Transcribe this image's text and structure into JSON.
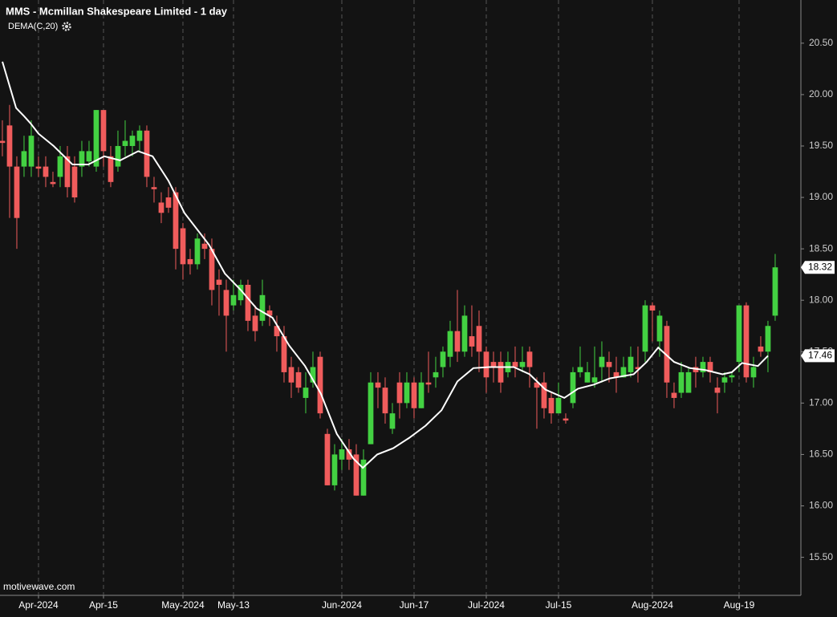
{
  "chart_data": {
    "type": "candlestick",
    "title": "MMS - Mcmillan Shakespeare Limited - 1 day",
    "watermark": "motivewave.com",
    "up_color": "#43d142",
    "down_color": "#f05c5c",
    "open": [
      19.55,
      19.7,
      19.3,
      19.3,
      19.3,
      19.3,
      19.3,
      19.15,
      19.2,
      19.4,
      19.3,
      19.3,
      19.35,
      19.3,
      19.85,
      19.4,
      19.3,
      19.5,
      19.5,
      19.55,
      19.65,
      19.1,
      18.95,
      19.0,
      19.05,
      18.7,
      18.4,
      18.35,
      18.55,
      18.5,
      18.2,
      18.1,
      17.95,
      18.0,
      18.15,
      17.85,
      17.8,
      17.9,
      17.75,
      17.65,
      17.35,
      17.3,
      17.05,
      17.2,
      17.45,
      16.7,
      16.2,
      16.45,
      16.55,
      16.5,
      16.1,
      16.6,
      17.2,
      17.15,
      16.75,
      17.2,
      17.0,
      17.2,
      16.95,
      17.2,
      17.25,
      17.35,
      17.45,
      17.7,
      17.5,
      17.65,
      17.75,
      17.5,
      17.4,
      17.4,
      17.3,
      17.4,
      17.35,
      17.5,
      17.2,
      17.2,
      17.05,
      16.9,
      16.85,
      17.0,
      17.3,
      17.2,
      17.2,
      17.35,
      17.4,
      17.3,
      17.25,
      17.3,
      17.35,
      17.5,
      17.95,
      17.6,
      17.75,
      17.1,
      17.1,
      17.1,
      17.35,
      17.3,
      17.4,
      17.15,
      17.2,
      17.25,
      17.4,
      17.95,
      17.25,
      17.55,
      17.5,
      17.85
    ],
    "high": [
      19.75,
      19.9,
      19.4,
      19.6,
      19.75,
      19.4,
      19.4,
      19.25,
      19.5,
      19.5,
      19.4,
      19.55,
      19.55,
      19.85,
      19.85,
      19.5,
      19.65,
      19.75,
      19.65,
      19.7,
      19.7,
      19.2,
      19.05,
      19.1,
      19.1,
      18.75,
      18.5,
      18.65,
      18.65,
      18.6,
      18.3,
      18.2,
      18.2,
      18.2,
      18.2,
      17.95,
      18.2,
      17.95,
      17.85,
      17.75,
      17.45,
      17.35,
      17.3,
      17.5,
      17.5,
      16.75,
      16.6,
      16.65,
      16.65,
      16.6,
      16.55,
      17.3,
      17.3,
      17.25,
      17.0,
      17.3,
      17.3,
      17.25,
      17.3,
      17.5,
      17.45,
      17.55,
      17.8,
      18.1,
      17.95,
      17.95,
      17.9,
      17.55,
      17.5,
      17.5,
      17.5,
      17.55,
      17.55,
      17.55,
      17.25,
      17.3,
      17.1,
      17.2,
      16.9,
      17.35,
      17.55,
      17.4,
      17.55,
      17.6,
      17.5,
      17.45,
      17.45,
      17.55,
      17.55,
      18.0,
      17.98,
      17.9,
      17.8,
      17.2,
      17.4,
      17.35,
      17.45,
      17.45,
      17.45,
      17.25,
      17.3,
      17.3,
      17.95,
      17.98,
      17.45,
      17.65,
      17.8,
      18.45
    ],
    "low": [
      19.4,
      18.8,
      18.5,
      19.2,
      19.2,
      19.2,
      19.1,
      19.1,
      19.1,
      19.0,
      18.95,
      19.2,
      19.3,
      19.25,
      19.3,
      19.1,
      19.25,
      19.4,
      19.4,
      19.45,
      19.1,
      18.95,
      18.75,
      18.85,
      18.3,
      18.2,
      18.25,
      18.3,
      18.4,
      17.95,
      17.85,
      17.5,
      17.9,
      17.95,
      17.7,
      17.6,
      17.75,
      17.75,
      17.5,
      17.2,
      17.05,
      17.1,
      16.9,
      17.15,
      16.85,
      16.2,
      16.15,
      16.35,
      16.35,
      16.1,
      16.1,
      16.6,
      16.95,
      16.8,
      16.7,
      16.85,
      16.95,
      16.85,
      16.95,
      17.1,
      17.15,
      17.25,
      17.35,
      17.4,
      17.45,
      17.45,
      17.3,
      17.1,
      17.2,
      17.1,
      17.25,
      17.25,
      17.3,
      17.15,
      16.75,
      16.85,
      16.8,
      16.9,
      16.8,
      16.95,
      17.25,
      17.2,
      17.15,
      17.2,
      17.2,
      17.1,
      17.25,
      17.25,
      17.2,
      17.4,
      17.6,
      17.45,
      17.05,
      16.95,
      17.05,
      17.15,
      17.15,
      17.25,
      17.2,
      16.9,
      17.1,
      17.2,
      17.3,
      17.2,
      17.15,
      17.45,
      17.3,
      17.8
    ],
    "close": [
      19.53,
      19.3,
      18.8,
      19.45,
      19.6,
      19.28,
      19.2,
      19.13,
      19.4,
      19.1,
      19.0,
      19.45,
      19.45,
      19.85,
      19.45,
      19.15,
      19.5,
      19.55,
      19.6,
      19.65,
      19.2,
      19.08,
      18.85,
      18.9,
      18.5,
      18.35,
      18.35,
      18.6,
      18.5,
      18.1,
      18.15,
      17.85,
      18.05,
      18.15,
      17.8,
      17.7,
      18.05,
      17.85,
      17.65,
      17.3,
      17.2,
      17.15,
      17.15,
      17.35,
      16.9,
      16.2,
      16.5,
      16.55,
      16.45,
      16.1,
      16.45,
      17.2,
      17.15,
      16.9,
      16.9,
      17.0,
      17.2,
      16.95,
      17.2,
      17.18,
      17.3,
      17.5,
      17.7,
      17.5,
      17.85,
      17.55,
      17.5,
      17.25,
      17.35,
      17.2,
      17.4,
      17.35,
      17.4,
      17.35,
      17.15,
      16.95,
      16.9,
      17.05,
      16.83,
      17.3,
      17.35,
      17.3,
      17.25,
      17.45,
      17.35,
      17.25,
      17.35,
      17.45,
      17.33,
      17.95,
      17.9,
      17.85,
      17.2,
      17.05,
      17.3,
      17.3,
      17.3,
      17.4,
      17.3,
      17.1,
      17.25,
      17.27,
      17.95,
      17.25,
      17.35,
      17.5,
      17.75,
      18.32
    ],
    "series": [
      {
        "name": "DEMA(C,20)",
        "color": "#ffffff",
        "x": [
          0,
          1.9,
          3,
          3.9,
          5,
          7.1,
          9.7,
          11.9,
          14.1,
          16.3,
          18.8,
          20.8,
          23,
          25.2,
          28.6,
          30.8,
          33,
          35.2,
          37.4,
          39.7,
          41.9,
          44.1,
          46.3,
          48.6,
          49.9,
          51.9,
          54.1,
          56.3,
          58.6,
          60.8,
          63,
          65.2,
          67.4,
          70.8,
          73,
          75.2,
          77.8,
          79.7,
          81.9,
          84.1,
          87.4,
          89.2,
          90.8,
          93,
          95.2,
          97.4,
          99.7,
          101,
          102.4,
          104.6,
          106
        ],
        "values": [
          20.32,
          19.87,
          19.79,
          19.72,
          19.62,
          19.5,
          19.32,
          19.32,
          19.4,
          19.36,
          19.45,
          19.4,
          19.16,
          18.85,
          18.54,
          18.26,
          18.1,
          17.92,
          17.83,
          17.56,
          17.36,
          17.09,
          16.7,
          16.46,
          16.37,
          16.5,
          16.56,
          16.66,
          16.78,
          16.93,
          17.21,
          17.34,
          17.35,
          17.35,
          17.28,
          17.13,
          17.05,
          17.14,
          17.18,
          17.24,
          17.28,
          17.4,
          17.54,
          17.4,
          17.34,
          17.32,
          17.28,
          17.3,
          17.39,
          17.36,
          17.46
        ]
      }
    ],
    "xlim": [
      -0.33,
      110.56
    ],
    "ylim": [
      15.13,
      20.92
    ],
    "xticks": [
      {
        "value": 5,
        "label": "Apr-2024"
      },
      {
        "value": 14,
        "label": "Apr-15"
      },
      {
        "value": 25,
        "label": "May-2024"
      },
      {
        "value": 32,
        "label": "May-13"
      },
      {
        "value": 47,
        "label": "Jun-2024"
      },
      {
        "value": 57,
        "label": "Jun-17"
      },
      {
        "value": 67,
        "label": "Jul-2024"
      },
      {
        "value": 77,
        "label": "Jul-15"
      },
      {
        "value": 90,
        "label": "Aug-2024"
      },
      {
        "value": 102,
        "label": "Aug-19"
      }
    ],
    "yticks": [
      {
        "value": 15.5,
        "label": "15.50"
      },
      {
        "value": 16,
        "label": "16.00"
      },
      {
        "value": 16.5,
        "label": "16.50"
      },
      {
        "value": 17,
        "label": "17.00"
      },
      {
        "value": 17.5,
        "label": "17.50"
      },
      {
        "value": 18,
        "label": "18.00"
      },
      {
        "value": 18.5,
        "label": "18.50"
      },
      {
        "value": 19,
        "label": "19.00"
      },
      {
        "value": 19.5,
        "label": "19.50"
      },
      {
        "value": 20,
        "label": "20.00"
      },
      {
        "value": 20.5,
        "label": "20.50"
      }
    ],
    "grid": true
  }
}
